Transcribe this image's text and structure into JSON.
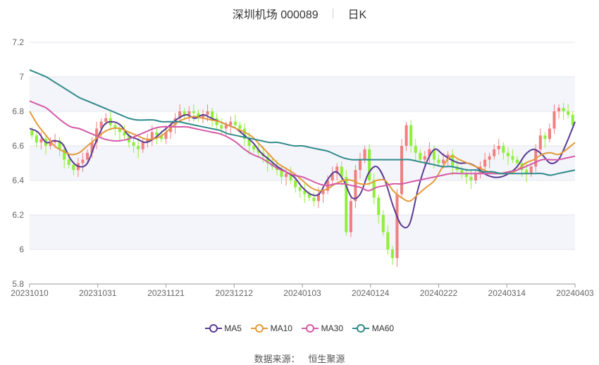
{
  "header": {
    "stock_title": "深圳机场 000089",
    "period": "日K"
  },
  "source": {
    "label": "数据来源：",
    "provider": "恒生聚源"
  },
  "colors": {
    "up": "#f08080",
    "down": "#8ff03a",
    "MA5": "#5a3b93",
    "MA10": "#e39a3a",
    "MA30": "#d45aa8",
    "MA60": "#2f8a8a",
    "band": "#f4f4fb",
    "grid": "#e6e6ee"
  },
  "chart_data": {
    "type": "candlestick",
    "ylim": [
      5.8,
      7.2
    ],
    "yticks": [
      "5.8",
      "6",
      "6.2",
      "6.4",
      "6.6",
      "6.8",
      "7",
      "7.2"
    ],
    "xtick_labels": [
      "20231010",
      "20231031",
      "20231121",
      "20231212",
      "20240103",
      "20240124",
      "20240222",
      "20240314",
      "20240403"
    ],
    "n_days": 118,
    "grid": true,
    "legend": "bottom",
    "close": [
      6.66,
      6.62,
      6.64,
      6.6,
      6.62,
      6.63,
      6.58,
      6.52,
      6.49,
      6.46,
      6.5,
      6.52,
      6.56,
      6.62,
      6.7,
      6.74,
      6.76,
      6.72,
      6.7,
      6.68,
      6.66,
      6.62,
      6.6,
      6.58,
      6.62,
      6.64,
      6.68,
      6.66,
      6.64,
      6.68,
      6.72,
      6.76,
      6.8,
      6.78,
      6.8,
      6.79,
      6.76,
      6.78,
      6.8,
      6.76,
      6.72,
      6.7,
      6.72,
      6.74,
      6.72,
      6.7,
      6.64,
      6.6,
      6.58,
      6.56,
      6.54,
      6.5,
      6.48,
      6.46,
      6.42,
      6.44,
      6.4,
      6.36,
      6.34,
      6.32,
      6.3,
      6.28,
      6.32,
      6.34,
      6.4,
      6.44,
      6.48,
      6.42,
      6.1,
      6.28,
      6.46,
      6.52,
      6.58,
      6.4,
      6.3,
      6.2,
      6.1,
      6.0,
      5.95,
      6.32,
      6.6,
      6.72,
      6.6,
      6.56,
      6.52,
      6.54,
      6.58,
      6.52,
      6.5,
      6.52,
      6.55,
      6.48,
      6.46,
      6.44,
      6.42,
      6.4,
      6.44,
      6.48,
      6.52,
      6.54,
      6.58,
      6.6,
      6.56,
      6.54,
      6.52,
      6.5,
      6.46,
      6.44,
      6.48,
      6.58,
      6.66,
      6.64,
      6.7,
      6.8,
      6.82,
      6.8,
      6.78,
      6.72
    ],
    "ma": [
      {
        "name": "MA5",
        "values": [
          6.7,
          6.68,
          6.62,
          6.63,
          6.61,
          6.52,
          6.48,
          6.5,
          6.62,
          6.72,
          6.74,
          6.72,
          6.66,
          6.64,
          6.62,
          6.64,
          6.68,
          6.72,
          6.76,
          6.78,
          6.76,
          6.78,
          6.76,
          6.74,
          6.72,
          6.7,
          6.66,
          6.62,
          6.56,
          6.52,
          6.48,
          6.45,
          6.42,
          6.36,
          6.32,
          6.32,
          6.4,
          6.45,
          6.4,
          6.3,
          6.32,
          6.44,
          6.48,
          6.4,
          6.25,
          6.14,
          6.15,
          6.35,
          6.5,
          6.58,
          6.55,
          6.52,
          6.5,
          6.5,
          6.48,
          6.44,
          6.42,
          6.42,
          6.44,
          6.48,
          6.55,
          6.58,
          6.55,
          6.5,
          6.52,
          6.62,
          6.74
        ]
      },
      {
        "name": "MA10",
        "values": [
          6.8,
          6.72,
          6.66,
          6.6,
          6.57,
          6.55,
          6.56,
          6.6,
          6.64,
          6.68,
          6.7,
          6.7,
          6.68,
          6.66,
          6.64,
          6.64,
          6.66,
          6.7,
          6.74,
          6.76,
          6.77,
          6.76,
          6.75,
          6.74,
          6.72,
          6.7,
          6.68,
          6.65,
          6.6,
          6.55,
          6.5,
          6.47,
          6.44,
          6.4,
          6.36,
          6.34,
          6.35,
          6.38,
          6.4,
          6.4,
          6.38,
          6.38,
          6.4,
          6.4,
          6.34,
          6.3,
          6.28,
          6.32,
          6.36,
          6.4,
          6.48,
          6.54,
          6.52,
          6.5,
          6.48,
          6.46,
          6.44,
          6.44,
          6.44,
          6.46,
          6.5,
          6.52,
          6.55,
          6.56,
          6.55,
          6.58,
          6.62
        ]
      },
      {
        "name": "MA30",
        "values": [
          6.86,
          6.84,
          6.82,
          6.78,
          6.74,
          6.71,
          6.7,
          6.68,
          6.66,
          6.64,
          6.63,
          6.63,
          6.64,
          6.66,
          6.68,
          6.7,
          6.71,
          6.71,
          6.71,
          6.71,
          6.7,
          6.69,
          6.68,
          6.67,
          6.65,
          6.62,
          6.58,
          6.55,
          6.53,
          6.5,
          6.47,
          6.45,
          6.43,
          6.42,
          6.4,
          6.38,
          6.37,
          6.38,
          6.38,
          6.37,
          6.36,
          6.34,
          6.36,
          6.37,
          6.38,
          6.38,
          6.39,
          6.4,
          6.41,
          6.42,
          6.43,
          6.44,
          6.44,
          6.44,
          6.44,
          6.44,
          6.44,
          6.44,
          6.45,
          6.46,
          6.48,
          6.5,
          6.52,
          6.52,
          6.52,
          6.53,
          6.54
        ]
      },
      {
        "name": "MA60",
        "values": [
          7.04,
          7.02,
          7.0,
          6.97,
          6.94,
          6.91,
          6.88,
          6.86,
          6.84,
          6.82,
          6.8,
          6.78,
          6.76,
          6.75,
          6.75,
          6.75,
          6.74,
          6.74,
          6.74,
          6.73,
          6.72,
          6.71,
          6.7,
          6.69,
          6.67,
          6.66,
          6.65,
          6.64,
          6.63,
          6.62,
          6.62,
          6.61,
          6.6,
          6.6,
          6.59,
          6.58,
          6.57,
          6.55,
          6.53,
          6.52,
          6.52,
          6.52,
          6.52,
          6.52,
          6.52,
          6.52,
          6.52,
          6.51,
          6.5,
          6.49,
          6.48,
          6.48,
          6.47,
          6.46,
          6.46,
          6.45,
          6.45,
          6.44,
          6.44,
          6.44,
          6.44,
          6.44,
          6.44,
          6.43,
          6.44,
          6.45,
          6.46
        ]
      }
    ]
  }
}
